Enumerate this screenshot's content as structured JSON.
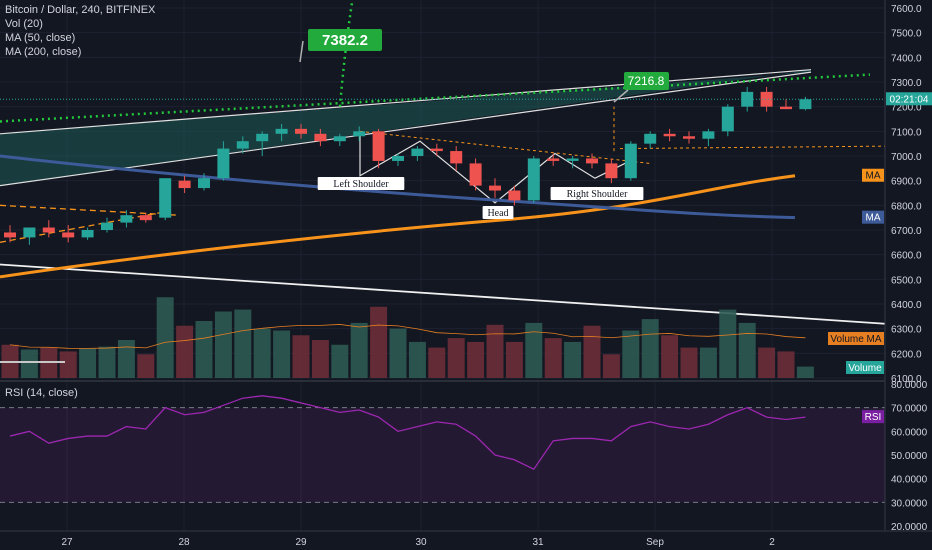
{
  "header": {
    "symbol_line": "Bitcoin / Dollar, 240, BITFINEX",
    "vol": "Vol (20)",
    "ma50": "MA (50, close)",
    "ma200": "MA (200, close)"
  },
  "rsi_title": "RSI (14, close)",
  "colors": {
    "background": "#131722",
    "up": "#26a69a",
    "down": "#ef5350",
    "ma50": "#f7931a",
    "ma200": "#3d5a99",
    "rsi": "#9c27b0",
    "target": "#22ab3c"
  },
  "chart_data": [
    {
      "type": "candlestick",
      "title": "Bitcoin / Dollar, 240, BITFINEX",
      "ylim": [
        6100,
        7700
      ],
      "y_ticks": [
        6100,
        6200,
        6300,
        6400,
        6500,
        6600,
        6700,
        6800,
        6900,
        7000,
        7100,
        7200,
        7300,
        7400,
        7500,
        7600
      ],
      "y_tick_labels": [
        "6100.0",
        "6200.0",
        "6300.0",
        "6400.0",
        "6500.0",
        "6600.0",
        "6700.0",
        "6800.0",
        "6900.0",
        "7000.0",
        "7100.0",
        "7200.0",
        "7300.0",
        "7400.0",
        "7500.0",
        "7600.0"
      ],
      "x_ticks": [
        "27",
        "28",
        "29",
        "30",
        "31",
        "Sep",
        "2"
      ],
      "candles": [
        {
          "o": 6690,
          "h": 6720,
          "l": 6650,
          "c": 6670
        },
        {
          "o": 6670,
          "h": 6710,
          "l": 6640,
          "c": 6710
        },
        {
          "o": 6710,
          "h": 6740,
          "l": 6670,
          "c": 6690
        },
        {
          "o": 6690,
          "h": 6720,
          "l": 6650,
          "c": 6670
        },
        {
          "o": 6670,
          "h": 6710,
          "l": 6660,
          "c": 6700
        },
        {
          "o": 6700,
          "h": 6750,
          "l": 6690,
          "c": 6730
        },
        {
          "o": 6730,
          "h": 6780,
          "l": 6710,
          "c": 6760
        },
        {
          "o": 6760,
          "h": 6770,
          "l": 6730,
          "c": 6740
        },
        {
          "o": 6750,
          "h": 6900,
          "l": 6740,
          "c": 6910
        },
        {
          "o": 6900,
          "h": 6920,
          "l": 6850,
          "c": 6870
        },
        {
          "o": 6870,
          "h": 6930,
          "l": 6860,
          "c": 6910
        },
        {
          "o": 6910,
          "h": 7060,
          "l": 6900,
          "c": 7030
        },
        {
          "o": 7030,
          "h": 7080,
          "l": 7010,
          "c": 7060
        },
        {
          "o": 7060,
          "h": 7100,
          "l": 7000,
          "c": 7090
        },
        {
          "o": 7090,
          "h": 7130,
          "l": 7060,
          "c": 7110
        },
        {
          "o": 7110,
          "h": 7130,
          "l": 7070,
          "c": 7090
        },
        {
          "o": 7090,
          "h": 7110,
          "l": 7040,
          "c": 7060
        },
        {
          "o": 7060,
          "h": 7090,
          "l": 7040,
          "c": 7080
        },
        {
          "o": 7080,
          "h": 7120,
          "l": 7060,
          "c": 7100
        },
        {
          "o": 7100,
          "h": 7110,
          "l": 6950,
          "c": 6980
        },
        {
          "o": 6980,
          "h": 7010,
          "l": 6960,
          "c": 7000
        },
        {
          "o": 7000,
          "h": 7040,
          "l": 6980,
          "c": 7030
        },
        {
          "o": 7030,
          "h": 7050,
          "l": 7000,
          "c": 7020
        },
        {
          "o": 7020,
          "h": 7040,
          "l": 6940,
          "c": 6970
        },
        {
          "o": 6970,
          "h": 6990,
          "l": 6860,
          "c": 6880
        },
        {
          "o": 6880,
          "h": 6910,
          "l": 6830,
          "c": 6860
        },
        {
          "o": 6860,
          "h": 6880,
          "l": 6800,
          "c": 6820
        },
        {
          "o": 6820,
          "h": 7000,
          "l": 6810,
          "c": 6990
        },
        {
          "o": 6990,
          "h": 7010,
          "l": 6960,
          "c": 6980
        },
        {
          "o": 6980,
          "h": 7000,
          "l": 6950,
          "c": 6990
        },
        {
          "o": 6990,
          "h": 7010,
          "l": 6950,
          "c": 6970
        },
        {
          "o": 6970,
          "h": 6990,
          "l": 6890,
          "c": 6910
        },
        {
          "o": 6910,
          "h": 7060,
          "l": 6900,
          "c": 7050
        },
        {
          "o": 7050,
          "h": 7100,
          "l": 7030,
          "c": 7090
        },
        {
          "o": 7090,
          "h": 7110,
          "l": 7060,
          "c": 7080
        },
        {
          "o": 7080,
          "h": 7100,
          "l": 7050,
          "c": 7070
        },
        {
          "o": 7070,
          "h": 7110,
          "l": 7040,
          "c": 7100
        },
        {
          "o": 7100,
          "h": 7210,
          "l": 7080,
          "c": 7200
        },
        {
          "o": 7200,
          "h": 7280,
          "l": 7180,
          "c": 7260
        },
        {
          "o": 7260,
          "h": 7280,
          "l": 7180,
          "c": 7200
        },
        {
          "o": 7200,
          "h": 7230,
          "l": 7190,
          "c": 7190
        },
        {
          "o": 7190,
          "h": 7240,
          "l": 7185,
          "c": 7230
        }
      ]
    },
    {
      "type": "bar",
      "name": "Vol (20)",
      "values": [
        0.35,
        0.3,
        0.32,
        0.28,
        0.31,
        0.33,
        0.4,
        0.25,
        0.85,
        0.55,
        0.6,
        0.7,
        0.72,
        0.52,
        0.5,
        0.45,
        0.4,
        0.35,
        0.58,
        0.75,
        0.52,
        0.38,
        0.32,
        0.42,
        0.38,
        0.56,
        0.38,
        0.58,
        0.42,
        0.38,
        0.55,
        0.25,
        0.5,
        0.62,
        0.45,
        0.32,
        0.32,
        0.72,
        0.58,
        0.32,
        0.28,
        0.12
      ]
    },
    {
      "type": "line",
      "name": "RSI (14, close)",
      "ylim": [
        20,
        80
      ],
      "y_ticks": [
        20,
        30,
        40,
        50,
        60,
        70,
        80
      ],
      "y_tick_labels": [
        "20.0000",
        "30.0000",
        "40.0000",
        "50.0000",
        "60.0000",
        "70.0000",
        "80.0000"
      ],
      "levels": [
        70,
        30
      ],
      "values": [
        58,
        60,
        55,
        57,
        58,
        58,
        62,
        61,
        70,
        67,
        68,
        71,
        74,
        75,
        74,
        72,
        70,
        68,
        69,
        66,
        60,
        62,
        64,
        63,
        58,
        50,
        48,
        44,
        56,
        57,
        57,
        56,
        62,
        64,
        62,
        61,
        63,
        67,
        70,
        66,
        65,
        66
      ]
    }
  ],
  "annotations": {
    "target_high": "7382.2",
    "target_mid": "7216.8",
    "left_shoulder": "Left Shoulder",
    "head": "Head",
    "right_shoulder": "Right Shoulder",
    "last_price_time": "02:21:04",
    "ma_50_tag": "MA",
    "ma_200_tag": "MA",
    "volume_ma_tag": "Volume MA",
    "volume_tag": "Volume",
    "rsi_tag": "RSI"
  }
}
